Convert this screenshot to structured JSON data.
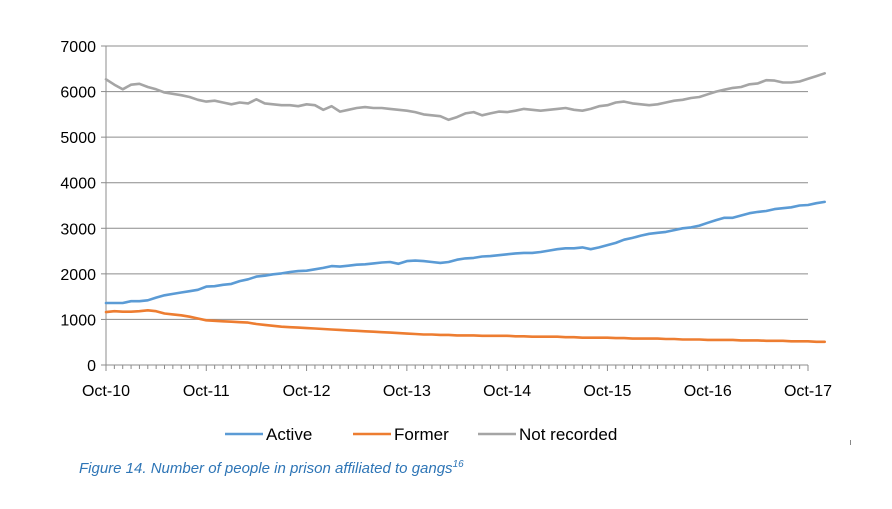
{
  "chart_data": {
    "type": "line",
    "title": "",
    "xlabel": "",
    "ylabel": "",
    "ylim": [
      0,
      7000
    ],
    "yticks": [
      0,
      1000,
      2000,
      3000,
      4000,
      5000,
      6000,
      7000
    ],
    "xtick_labels": [
      "Oct-10",
      "Oct-11",
      "Oct-12",
      "Oct-13",
      "Oct-14",
      "Oct-15",
      "Oct-16",
      "Oct-17"
    ],
    "grid": "horizontal",
    "legend_position": "bottom",
    "x_start_month_index": 0,
    "months_per_tick": 12,
    "series": [
      {
        "name": "Active",
        "color": "#5b9bd5",
        "values": [
          1360,
          1360,
          1360,
          1400,
          1400,
          1420,
          1480,
          1530,
          1560,
          1590,
          1620,
          1650,
          1720,
          1730,
          1760,
          1780,
          1840,
          1880,
          1940,
          1960,
          1990,
          2010,
          2040,
          2060,
          2070,
          2100,
          2130,
          2170,
          2160,
          2180,
          2200,
          2210,
          2230,
          2250,
          2260,
          2220,
          2280,
          2290,
          2280,
          2260,
          2240,
          2260,
          2310,
          2340,
          2350,
          2380,
          2390,
          2410,
          2430,
          2450,
          2460,
          2460,
          2480,
          2510,
          2540,
          2560,
          2560,
          2580,
          2540,
          2580,
          2630,
          2680,
          2750,
          2790,
          2840,
          2880,
          2900,
          2920,
          2960,
          3000,
          3020,
          3060,
          3120,
          3180,
          3230,
          3230,
          3280,
          3330,
          3360,
          3380,
          3420,
          3440,
          3460,
          3500,
          3510,
          3550,
          3580
        ]
      },
      {
        "name": "Former",
        "color": "#ed7d31",
        "values": [
          1160,
          1180,
          1170,
          1170,
          1180,
          1200,
          1180,
          1130,
          1110,
          1090,
          1060,
          1020,
          980,
          970,
          960,
          950,
          940,
          930,
          900,
          880,
          860,
          840,
          830,
          820,
          810,
          800,
          790,
          780,
          770,
          760,
          750,
          740,
          730,
          720,
          710,
          700,
          690,
          680,
          670,
          670,
          660,
          660,
          650,
          650,
          650,
          640,
          640,
          640,
          640,
          630,
          630,
          620,
          620,
          620,
          620,
          610,
          610,
          600,
          600,
          600,
          600,
          590,
          590,
          580,
          580,
          580,
          580,
          570,
          570,
          560,
          560,
          560,
          550,
          550,
          550,
          550,
          540,
          540,
          540,
          530,
          530,
          530,
          520,
          520,
          520,
          510,
          510
        ]
      },
      {
        "name": "Not recorded",
        "color": "#a5a5a5",
        "values": [
          6270,
          6150,
          6050,
          6150,
          6170,
          6100,
          6050,
          5980,
          5950,
          5920,
          5880,
          5820,
          5780,
          5800,
          5760,
          5720,
          5760,
          5740,
          5830,
          5740,
          5720,
          5700,
          5700,
          5680,
          5720,
          5700,
          5600,
          5680,
          5560,
          5600,
          5640,
          5660,
          5640,
          5640,
          5620,
          5600,
          5580,
          5550,
          5500,
          5480,
          5460,
          5380,
          5440,
          5520,
          5550,
          5480,
          5520,
          5560,
          5550,
          5580,
          5620,
          5600,
          5580,
          5600,
          5620,
          5640,
          5600,
          5580,
          5620,
          5680,
          5700,
          5760,
          5780,
          5740,
          5720,
          5700,
          5720,
          5760,
          5800,
          5820,
          5860,
          5880,
          5940,
          6000,
          6040,
          6080,
          6100,
          6160,
          6180,
          6250,
          6240,
          6200,
          6200,
          6220,
          6280,
          6340,
          6400
        ]
      }
    ]
  },
  "legend": [
    {
      "label": "Active",
      "color": "#5b9bd5"
    },
    {
      "label": "Former",
      "color": "#ed7d31"
    },
    {
      "label": "Not recorded",
      "color": "#a5a5a5"
    }
  ],
  "caption": {
    "text": "Figure 14. Number of people in prison affiliated to gangs",
    "footnote": "16"
  }
}
